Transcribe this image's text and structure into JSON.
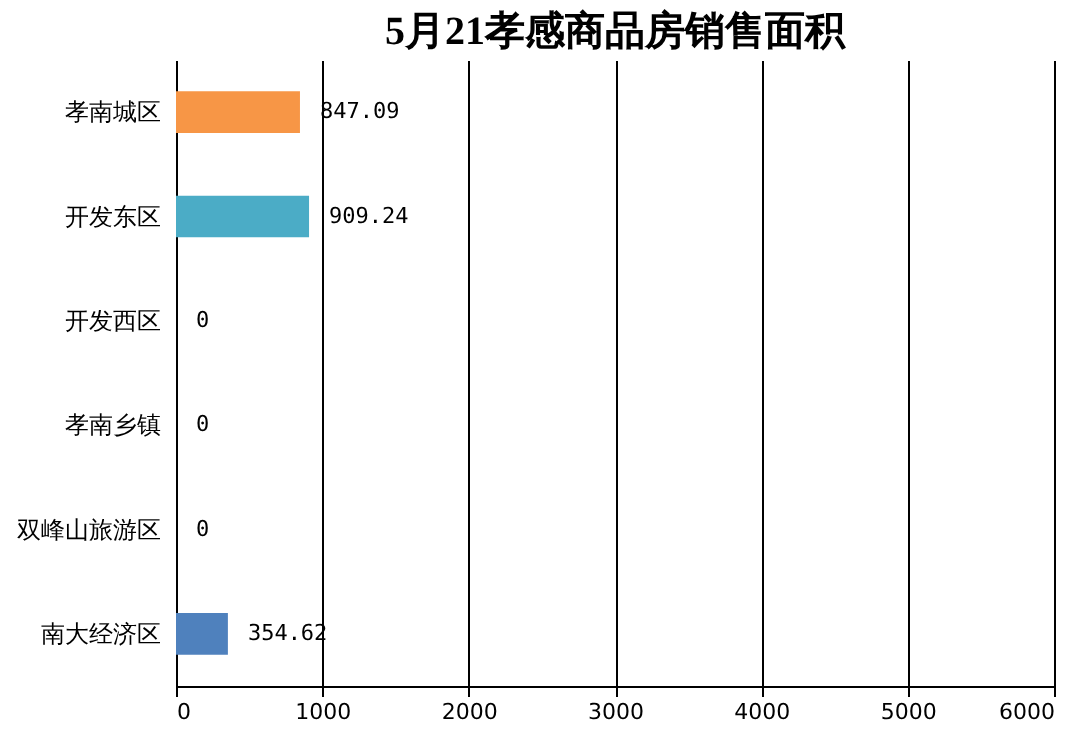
{
  "chart_data": {
    "type": "bar",
    "orientation": "horizontal",
    "title": "5月21孝感商品房销售面积",
    "categories": [
      "孝南城区",
      "开发东区",
      "开发西区",
      "孝南乡镇",
      "双峰山旅游区",
      "南大经济区"
    ],
    "values": [
      847.09,
      909.24,
      0,
      0,
      0,
      354.62
    ],
    "colors": [
      "#f79646",
      "#4bacc6",
      "#4f81bd",
      "#4f81bd",
      "#4f81bd",
      "#4f81bd"
    ],
    "xlim": [
      0,
      6000
    ],
    "xticks": [
      0,
      1000,
      2000,
      3000,
      4000,
      5000,
      6000
    ],
    "grid": "x",
    "data_labels": true
  }
}
